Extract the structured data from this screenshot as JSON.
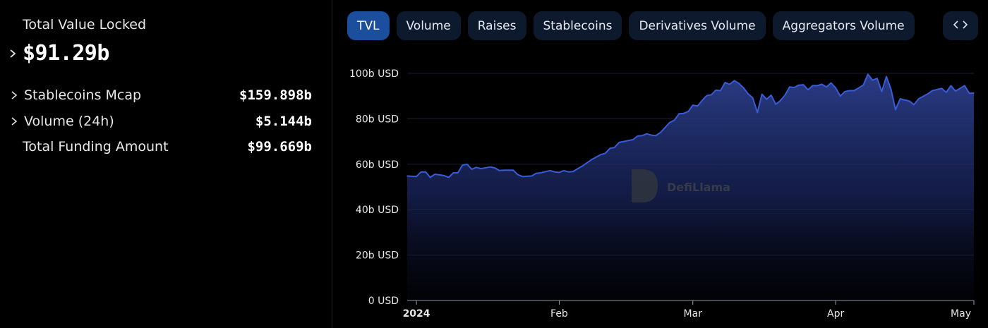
{
  "left_panel": {
    "tvl_title": "Total Value Locked",
    "tvl_value": "$91.29b",
    "stats": [
      {
        "label": "Stablecoins Mcap",
        "value": "$159.898b",
        "expandable": true
      },
      {
        "label": "Volume (24h)",
        "value": "$5.144b",
        "expandable": true
      },
      {
        "label": "Total Funding Amount",
        "value": "$99.669b",
        "expandable": false
      }
    ]
  },
  "tabs": [
    {
      "label": "TVL",
      "active": true
    },
    {
      "label": "Volume",
      "active": false
    },
    {
      "label": "Raises",
      "active": false
    },
    {
      "label": "Stablecoins",
      "active": false
    },
    {
      "label": "Derivatives Volume",
      "active": false
    },
    {
      "label": "Aggregators Volume",
      "active": false
    }
  ],
  "embed_button_icon": "code-icon",
  "watermark": "DefiLlama",
  "colors": {
    "line": "#3a5bd9",
    "active_tab": "#1c4e9e",
    "tab": "#0d1a2e"
  },
  "chart_data": {
    "type": "area",
    "title": "",
    "xlabel": "",
    "ylabel": "",
    "ylim": [
      0,
      100
    ],
    "y_ticks": [
      "0 USD",
      "20b USD",
      "40b USD",
      "60b USD",
      "80b USD",
      "100b USD"
    ],
    "x_ticks": [
      {
        "label": "2024",
        "day": 0
      },
      {
        "label": "Feb",
        "day": 31
      },
      {
        "label": "Mar",
        "day": 60
      },
      {
        "label": "Apr",
        "day": 91
      },
      {
        "label": "May",
        "day": 121
      }
    ],
    "grid": true,
    "series": [
      {
        "values": [
          {
            "x": "2023-12-30",
            "y": 54.8
          },
          {
            "x": "2024-01-01",
            "y": 54.6
          },
          {
            "x": "2024-01-02",
            "y": 56.6
          },
          {
            "x": "2024-01-03",
            "y": 56.6
          },
          {
            "x": "2024-01-04",
            "y": 54.2
          },
          {
            "x": "2024-01-05",
            "y": 55.6
          },
          {
            "x": "2024-01-07",
            "y": 55.0
          },
          {
            "x": "2024-01-08",
            "y": 54.2
          },
          {
            "x": "2024-01-09",
            "y": 56.2
          },
          {
            "x": "2024-01-10",
            "y": 56.2
          },
          {
            "x": "2024-01-11",
            "y": 59.6
          },
          {
            "x": "2024-01-12",
            "y": 60.0
          },
          {
            "x": "2024-01-13",
            "y": 57.8
          },
          {
            "x": "2024-01-14",
            "y": 58.6
          },
          {
            "x": "2024-01-15",
            "y": 58.0
          },
          {
            "x": "2024-01-17",
            "y": 58.8
          },
          {
            "x": "2024-01-18",
            "y": 58.4
          },
          {
            "x": "2024-01-19",
            "y": 57.2
          },
          {
            "x": "2024-01-20",
            "y": 57.4
          },
          {
            "x": "2024-01-22",
            "y": 57.4
          },
          {
            "x": "2024-01-23",
            "y": 55.4
          },
          {
            "x": "2024-01-24",
            "y": 54.6
          },
          {
            "x": "2024-01-26",
            "y": 54.8
          },
          {
            "x": "2024-01-27",
            "y": 56.0
          },
          {
            "x": "2024-01-28",
            "y": 56.2
          },
          {
            "x": "2024-01-30",
            "y": 57.2
          },
          {
            "x": "2024-01-31",
            "y": 56.6
          },
          {
            "x": "2024-02-01",
            "y": 56.4
          },
          {
            "x": "2024-02-02",
            "y": 57.2
          },
          {
            "x": "2024-02-03",
            "y": 56.6
          },
          {
            "x": "2024-02-04",
            "y": 56.8
          },
          {
            "x": "2024-02-06",
            "y": 59.2
          },
          {
            "x": "2024-02-07",
            "y": 60.6
          },
          {
            "x": "2024-02-08",
            "y": 62.0
          },
          {
            "x": "2024-02-10",
            "y": 64.2
          },
          {
            "x": "2024-02-11",
            "y": 64.8
          },
          {
            "x": "2024-02-12",
            "y": 67.0
          },
          {
            "x": "2024-02-13",
            "y": 67.4
          },
          {
            "x": "2024-02-14",
            "y": 69.6
          },
          {
            "x": "2024-02-15",
            "y": 70.0
          },
          {
            "x": "2024-02-17",
            "y": 70.8
          },
          {
            "x": "2024-02-18",
            "y": 72.4
          },
          {
            "x": "2024-02-19",
            "y": 72.6
          },
          {
            "x": "2024-02-20",
            "y": 73.4
          },
          {
            "x": "2024-02-21",
            "y": 72.8
          },
          {
            "x": "2024-02-22",
            "y": 72.6
          },
          {
            "x": "2024-02-23",
            "y": 74.0
          },
          {
            "x": "2024-02-24",
            "y": 76.2
          },
          {
            "x": "2024-02-25",
            "y": 78.4
          },
          {
            "x": "2024-02-26",
            "y": 79.4
          },
          {
            "x": "2024-02-27",
            "y": 82.2
          },
          {
            "x": "2024-02-28",
            "y": 82.4
          },
          {
            "x": "2024-02-29",
            "y": 83.2
          },
          {
            "x": "2024-03-01",
            "y": 86.0
          },
          {
            "x": "2024-03-02",
            "y": 85.6
          },
          {
            "x": "2024-03-03",
            "y": 88.0
          },
          {
            "x": "2024-03-04",
            "y": 90.2
          },
          {
            "x": "2024-03-05",
            "y": 90.6
          },
          {
            "x": "2024-03-06",
            "y": 92.6
          },
          {
            "x": "2024-03-07",
            "y": 92.4
          },
          {
            "x": "2024-03-08",
            "y": 96.0
          },
          {
            "x": "2024-03-09",
            "y": 95.2
          },
          {
            "x": "2024-03-10",
            "y": 96.8
          },
          {
            "x": "2024-03-11",
            "y": 95.6
          },
          {
            "x": "2024-03-12",
            "y": 93.6
          },
          {
            "x": "2024-03-13",
            "y": 91.0
          },
          {
            "x": "2024-03-14",
            "y": 89.2
          },
          {
            "x": "2024-03-15",
            "y": 82.8
          },
          {
            "x": "2024-03-16",
            "y": 90.8
          },
          {
            "x": "2024-03-17",
            "y": 88.6
          },
          {
            "x": "2024-03-18",
            "y": 90.4
          },
          {
            "x": "2024-03-19",
            "y": 86.4
          },
          {
            "x": "2024-03-20",
            "y": 88.0
          },
          {
            "x": "2024-03-21",
            "y": 90.4
          },
          {
            "x": "2024-03-22",
            "y": 94.0
          },
          {
            "x": "2024-03-23",
            "y": 93.8
          },
          {
            "x": "2024-03-24",
            "y": 94.8
          },
          {
            "x": "2024-03-25",
            "y": 95.0
          },
          {
            "x": "2024-03-26",
            "y": 92.8
          },
          {
            "x": "2024-03-27",
            "y": 94.6
          },
          {
            "x": "2024-03-28",
            "y": 94.6
          },
          {
            "x": "2024-03-29",
            "y": 95.2
          },
          {
            "x": "2024-03-30",
            "y": 94.0
          },
          {
            "x": "2024-03-31",
            "y": 95.8
          },
          {
            "x": "2024-04-01",
            "y": 93.6
          },
          {
            "x": "2024-04-02",
            "y": 90.0
          },
          {
            "x": "2024-04-03",
            "y": 92.0
          },
          {
            "x": "2024-04-04",
            "y": 92.4
          },
          {
            "x": "2024-04-05",
            "y": 92.4
          },
          {
            "x": "2024-04-07",
            "y": 94.8
          },
          {
            "x": "2024-04-08",
            "y": 99.6
          },
          {
            "x": "2024-04-09",
            "y": 97.0
          },
          {
            "x": "2024-04-10",
            "y": 97.8
          },
          {
            "x": "2024-04-11",
            "y": 92.0
          },
          {
            "x": "2024-04-12",
            "y": 98.6
          },
          {
            "x": "2024-04-13",
            "y": 93.0
          },
          {
            "x": "2024-04-14",
            "y": 84.0
          },
          {
            "x": "2024-04-15",
            "y": 88.8
          },
          {
            "x": "2024-04-17",
            "y": 87.8
          },
          {
            "x": "2024-04-18",
            "y": 86.2
          },
          {
            "x": "2024-04-19",
            "y": 88.8
          },
          {
            "x": "2024-04-21",
            "y": 91.0
          },
          {
            "x": "2024-04-22",
            "y": 92.4
          },
          {
            "x": "2024-04-24",
            "y": 93.4
          },
          {
            "x": "2024-04-25",
            "y": 91.6
          },
          {
            "x": "2024-04-26",
            "y": 94.6
          },
          {
            "x": "2024-04-27",
            "y": 92.2
          },
          {
            "x": "2024-04-28",
            "y": 93.4
          },
          {
            "x": "2024-04-29",
            "y": 94.6
          },
          {
            "x": "2024-04-30",
            "y": 91.2
          },
          {
            "x": "2024-05-01",
            "y": 91.3
          }
        ]
      }
    ]
  }
}
